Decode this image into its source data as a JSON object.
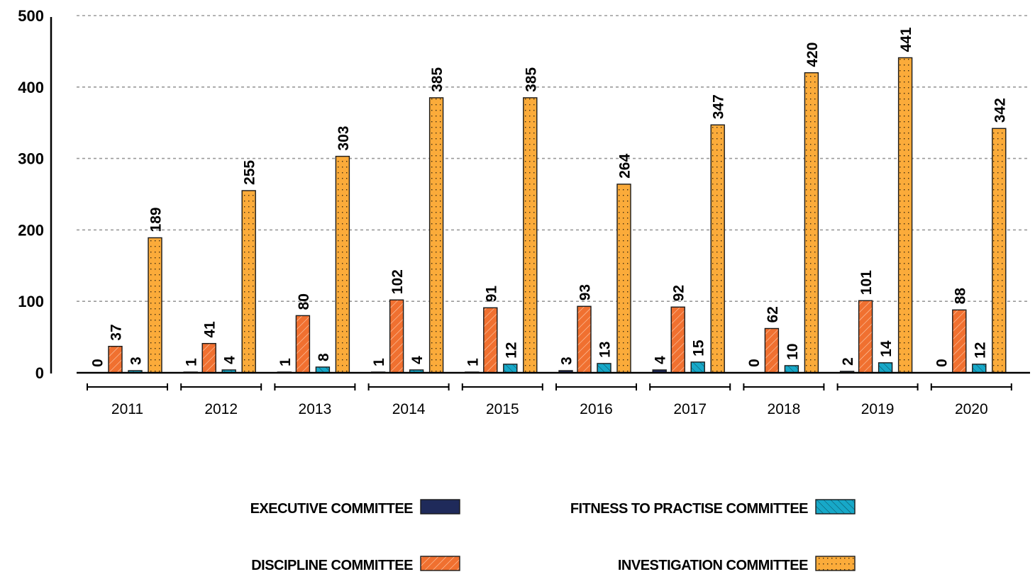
{
  "chart_data": {
    "type": "bar",
    "title": "",
    "xlabel": "",
    "ylabel": "",
    "ylim": [
      0,
      500
    ],
    "yticks": [
      0,
      100,
      200,
      300,
      400,
      500
    ],
    "grid": {
      "y": true,
      "style": "dashed",
      "color": "#9a9a9a"
    },
    "legend_position": "bottom",
    "categories": [
      "2011",
      "2012",
      "2013",
      "2014",
      "2015",
      "2016",
      "2017",
      "2018",
      "2019",
      "2020"
    ],
    "series": [
      {
        "name": "EXECUTIVE COMMITTEE",
        "color": "#1f2a5a",
        "pattern": "solid",
        "values": [
          0,
          1,
          1,
          1,
          1,
          3,
          4,
          0,
          2,
          0
        ]
      },
      {
        "name": "DISCIPLINE COMMITTEE",
        "color": "#f07030",
        "pattern": "diagonal-hatch-light",
        "values": [
          37,
          41,
          80,
          102,
          91,
          93,
          92,
          62,
          101,
          88
        ]
      },
      {
        "name": "FITNESS TO PRACTISE COMMITTEE",
        "color": "#17a8c8",
        "pattern": "diagonal-hatch-dark",
        "values": [
          3,
          4,
          8,
          4,
          12,
          13,
          15,
          10,
          14,
          12
        ]
      },
      {
        "name": "INVESTIGATION COMMITTEE",
        "color": "#fbab3a",
        "pattern": "dots",
        "values": [
          189,
          255,
          303,
          385,
          385,
          264,
          347,
          420,
          441,
          342
        ]
      }
    ],
    "data_labels": true
  },
  "legend": {
    "items": [
      {
        "label": "EXECUTIVE COMMITTEE"
      },
      {
        "label": "FITNESS TO PRACTISE COMMITTEE"
      },
      {
        "label": "DISCIPLINE COMMITTEE"
      },
      {
        "label": "INVESTIGATION COMMITTEE"
      }
    ]
  }
}
